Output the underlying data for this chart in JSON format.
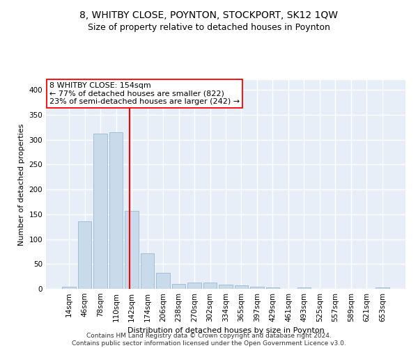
{
  "title": "8, WHITBY CLOSE, POYNTON, STOCKPORT, SK12 1QW",
  "subtitle": "Size of property relative to detached houses in Poynton",
  "xlabel": "Distribution of detached houses by size in Poynton",
  "ylabel": "Number of detached properties",
  "bar_color": "#c9daea",
  "bar_edge_color": "#a0bfd4",
  "categories": [
    "14sqm",
    "46sqm",
    "78sqm",
    "110sqm",
    "142sqm",
    "174sqm",
    "206sqm",
    "238sqm",
    "270sqm",
    "302sqm",
    "334sqm",
    "365sqm",
    "397sqm",
    "429sqm",
    "461sqm",
    "493sqm",
    "525sqm",
    "557sqm",
    "589sqm",
    "621sqm",
    "653sqm"
  ],
  "values": [
    4,
    136,
    312,
    315,
    157,
    71,
    32,
    10,
    13,
    13,
    9,
    7,
    4,
    3,
    0,
    3,
    0,
    0,
    0,
    0,
    3
  ],
  "annotation_text": "8 WHITBY CLOSE: 154sqm\n← 77% of detached houses are smaller (822)\n23% of semi-detached houses are larger (242) →",
  "annotation_box_color": "white",
  "annotation_box_edge_color": "red",
  "vline_color": "red",
  "vline_x": 3.87,
  "footer": "Contains HM Land Registry data © Crown copyright and database right 2024.\nContains public sector information licensed under the Open Government Licence v3.0.",
  "ylim": [
    0,
    420
  ],
  "yticks": [
    0,
    50,
    100,
    150,
    200,
    250,
    300,
    350,
    400
  ],
  "background_color": "#e8eef8",
  "grid_color": "white",
  "title_fontsize": 10,
  "subtitle_fontsize": 9,
  "axis_label_fontsize": 8,
  "tick_fontsize": 7.5,
  "annotation_fontsize": 8,
  "footer_fontsize": 6.5
}
